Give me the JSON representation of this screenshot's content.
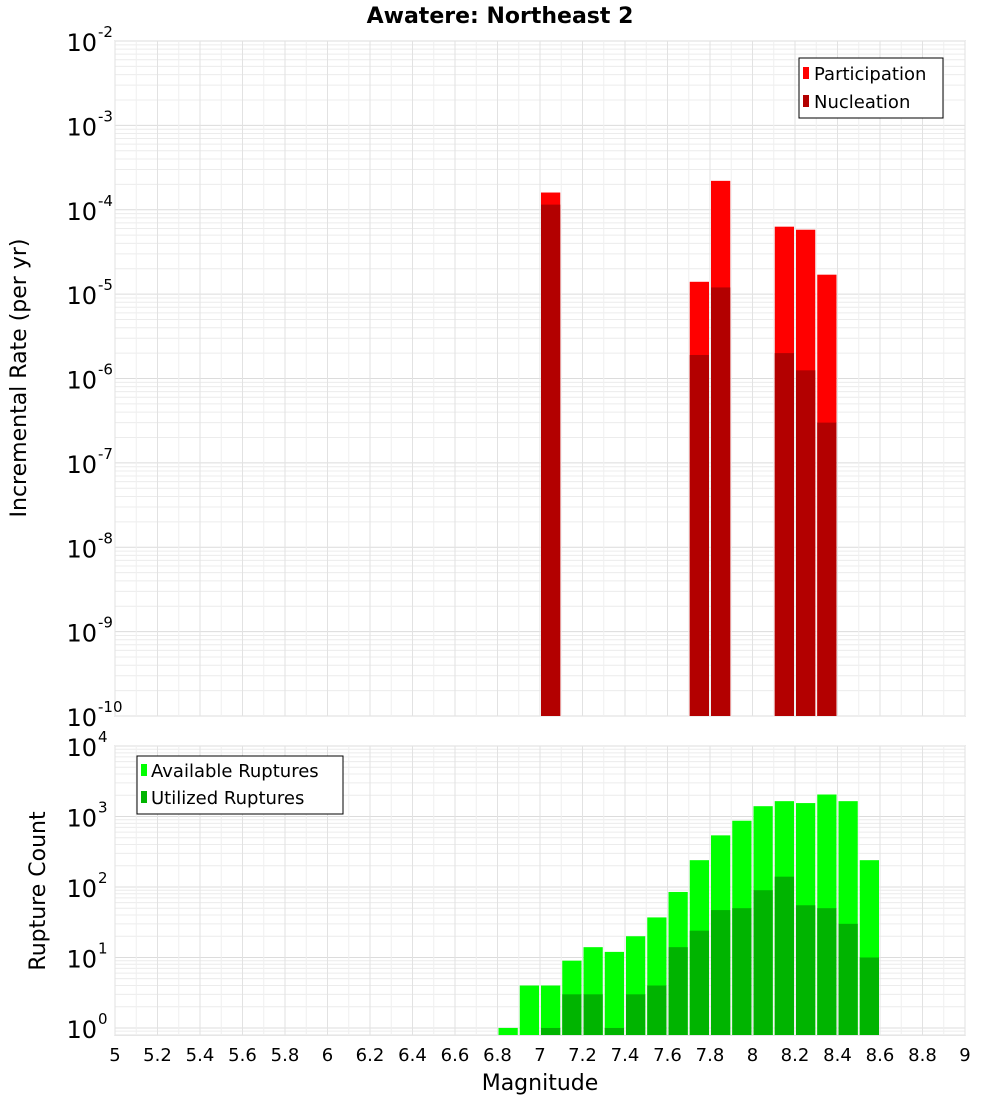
{
  "chart_data": [
    {
      "type": "bar",
      "scale": "log",
      "title": "Awatere: Northeast 2",
      "ylabel": "Incremental Rate (per yr)",
      "ylim_exp": [
        -10,
        -2
      ],
      "ytick_base": "10",
      "ytick_exponents": [
        "-10",
        "-9",
        "-8",
        "-7",
        "-6",
        "-5",
        "-4",
        "-3",
        "-2"
      ],
      "legend_position": "top-right",
      "grid": true,
      "bin_width": 0.1,
      "series": [
        {
          "name": "Participation",
          "color": "#ff0000",
          "x": [
            7.05,
            7.75,
            7.85,
            8.15,
            8.25,
            8.35
          ],
          "values": [
            0.00016,
            1.4e-05,
            0.00022,
            6.3e-05,
            5.8e-05,
            1.7e-05
          ]
        },
        {
          "name": "Nucleation",
          "color": "#b30000",
          "x": [
            7.05,
            7.75,
            7.85,
            8.15,
            8.25,
            8.35
          ],
          "values": [
            0.000115,
            1.9e-06,
            1.2e-05,
            2e-06,
            1.25e-06,
            3e-07
          ]
        }
      ]
    },
    {
      "type": "bar",
      "scale": "log",
      "ylabel": "Rupture Count",
      "xlabel": "Magnitude",
      "ylim_exp": [
        -0.1,
        4
      ],
      "ytick_base": "10",
      "ytick_exponents": [
        "0",
        "1",
        "2",
        "3",
        "4"
      ],
      "xlim": [
        5,
        9
      ],
      "xticks": [
        "5",
        "5.2",
        "5.4",
        "5.6",
        "5.8",
        "6",
        "6.2",
        "6.4",
        "6.6",
        "6.8",
        "7",
        "7.2",
        "7.4",
        "7.6",
        "7.8",
        "8",
        "8.2",
        "8.4",
        "8.6",
        "8.8",
        "9"
      ],
      "legend_position": "top-left",
      "grid": true,
      "bin_width": 0.1,
      "series": [
        {
          "name": "Available Ruptures",
          "color": "#00ff00",
          "x": [
            6.85,
            6.95,
            7.05,
            7.15,
            7.25,
            7.35,
            7.45,
            7.55,
            7.65,
            7.75,
            7.85,
            7.95,
            8.05,
            8.15,
            8.25,
            8.35,
            8.45,
            8.55
          ],
          "values": [
            1,
            4,
            4,
            9,
            14,
            12,
            20,
            37,
            85,
            240,
            540,
            870,
            1400,
            1650,
            1550,
            2050,
            1650,
            240
          ]
        },
        {
          "name": "Utilized Ruptures",
          "color": "#00b400",
          "x": [
            6.95,
            7.05,
            7.15,
            7.25,
            7.35,
            7.45,
            7.55,
            7.65,
            7.75,
            7.85,
            7.95,
            8.05,
            8.15,
            8.25,
            8.35,
            8.45,
            8.55
          ],
          "values": [
            0,
            1,
            3,
            3,
            1,
            3,
            4,
            14,
            24,
            47,
            50,
            90,
            140,
            55,
            50,
            30,
            10
          ]
        }
      ]
    }
  ]
}
